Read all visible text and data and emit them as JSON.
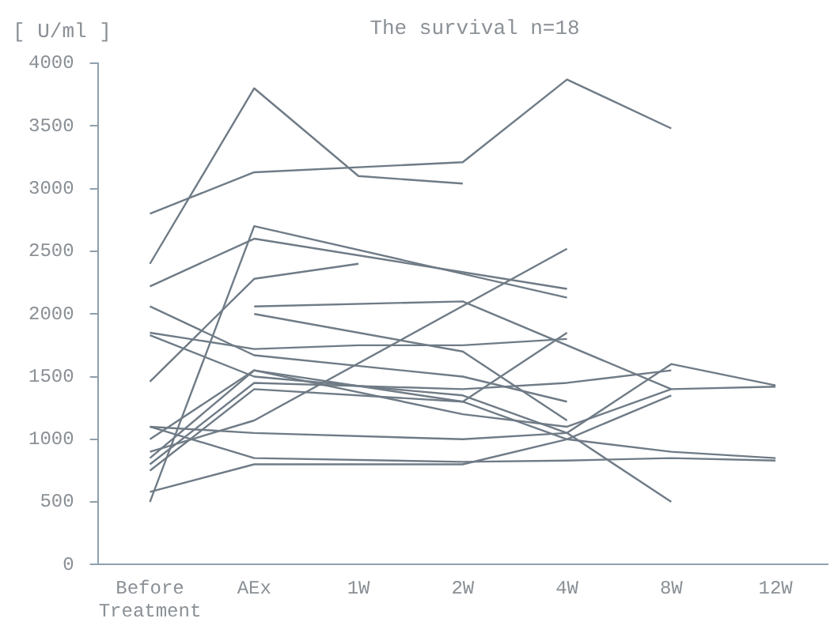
{
  "chart_data": {
    "type": "line",
    "title": "The survival n=18",
    "ylabel": "[ U/ml ]",
    "categories": [
      "Before Treatment",
      "AEx",
      "1W",
      "2W",
      "4W",
      "8W",
      "12W"
    ],
    "ylim": [
      0,
      4000
    ],
    "yticks": [
      0,
      500,
      1000,
      1500,
      2000,
      2500,
      3000,
      3500,
      4000
    ],
    "grid": false,
    "legend": false,
    "marker": "none",
    "series": [
      {
        "color": "#6f7b86",
        "values": [
          2400,
          3800,
          3100,
          3040,
          null,
          null,
          null
        ]
      },
      {
        "color": "#6f7b86",
        "values": [
          2800,
          3130,
          null,
          3210,
          3870,
          3480,
          null
        ]
      },
      {
        "color": "#6f7b86",
        "values": [
          2220,
          2600,
          null,
          null,
          2200,
          null,
          null
        ]
      },
      {
        "color": "#6f7b86",
        "values": [
          500,
          2700,
          null,
          null,
          2130,
          null,
          null
        ]
      },
      {
        "color": "#6f7b86",
        "values": [
          1460,
          2280,
          2400,
          null,
          null,
          null,
          null
        ]
      },
      {
        "color": "#6f7b86",
        "values": [
          null,
          2060,
          null,
          2100,
          null,
          1400,
          null
        ]
      },
      {
        "color": "#6f7b86",
        "values": [
          null,
          2000,
          null,
          1700,
          1150,
          null,
          null
        ]
      },
      {
        "color": "#6f7b86",
        "values": [
          2060,
          1670,
          null,
          1500,
          1300,
          null,
          null
        ]
      },
      {
        "color": "#6f7b86",
        "values": [
          1850,
          1720,
          1750,
          1750,
          1800,
          null,
          null
        ]
      },
      {
        "color": "#6f7b86",
        "values": [
          1830,
          1500,
          null,
          1350,
          1050,
          500,
          null
        ]
      },
      {
        "color": "#6f7b86",
        "values": [
          900,
          1150,
          null,
          null,
          2520,
          null,
          null
        ]
      },
      {
        "color": "#6f7b86",
        "values": [
          1000,
          1550,
          null,
          1300,
          1850,
          null,
          null
        ]
      },
      {
        "color": "#6f7b86",
        "values": [
          1100,
          1050,
          null,
          1000,
          1050,
          1600,
          1430
        ]
      },
      {
        "color": "#6f7b86",
        "values": [
          850,
          1550,
          null,
          1200,
          1100,
          1400,
          1420
        ]
      },
      {
        "color": "#6f7b86",
        "values": [
          580,
          800,
          null,
          800,
          1000,
          1350,
          null
        ]
      },
      {
        "color": "#6f7b86",
        "values": [
          1100,
          850,
          null,
          820,
          830,
          850,
          830
        ]
      },
      {
        "color": "#6f7b86",
        "values": [
          800,
          1450,
          null,
          1400,
          1450,
          1550,
          null
        ]
      },
      {
        "color": "#6f7b86",
        "values": [
          750,
          1400,
          null,
          1300,
          1000,
          900,
          850
        ]
      }
    ]
  }
}
